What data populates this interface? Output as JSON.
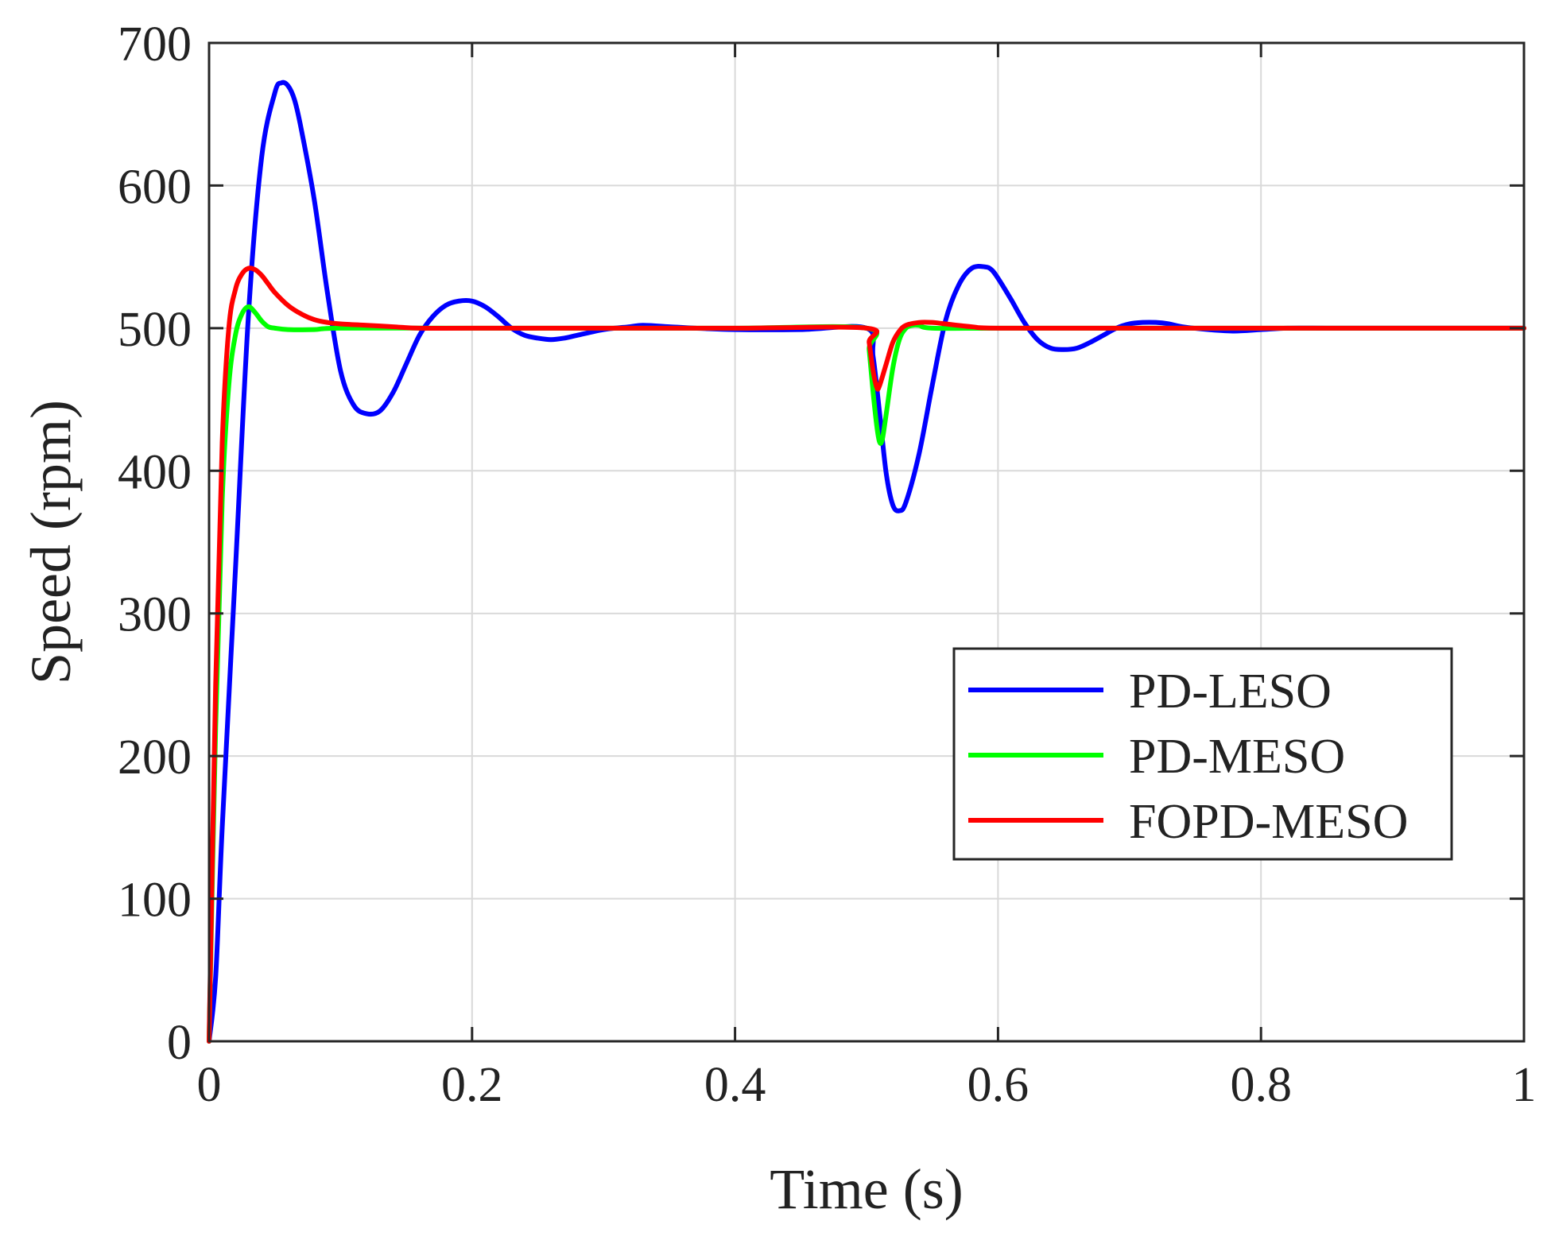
{
  "chart_data": {
    "type": "line",
    "title": "",
    "xlabel": "Time (s)",
    "ylabel": "Speed (rpm)",
    "xlim": [
      0,
      1
    ],
    "ylim": [
      0,
      700
    ],
    "grid": true,
    "legend_position": "right-middle",
    "x_ticks": [
      0,
      0.2,
      0.4,
      0.6,
      0.8,
      1
    ],
    "x_tick_labels": [
      "0",
      "0.2",
      "0.4",
      "0.6",
      "0.8",
      "1"
    ],
    "y_ticks": [
      0,
      100,
      200,
      300,
      400,
      500,
      600,
      700
    ],
    "y_tick_labels": [
      "0",
      "100",
      "200",
      "300",
      "400",
      "500",
      "600",
      "700"
    ],
    "series": [
      {
        "name": "PD-LESO",
        "color": "#0000ff",
        "x": [
          0,
          0.005,
          0.01,
          0.02,
          0.03,
          0.04,
          0.05,
          0.055,
          0.06,
          0.065,
          0.07,
          0.08,
          0.09,
          0.1,
          0.11,
          0.12,
          0.13,
          0.14,
          0.15,
          0.16,
          0.17,
          0.18,
          0.19,
          0.2,
          0.21,
          0.22,
          0.23,
          0.24,
          0.25,
          0.26,
          0.27,
          0.28,
          0.3,
          0.32,
          0.33,
          0.35,
          0.37,
          0.4,
          0.45,
          0.5,
          0.505,
          0.51,
          0.515,
          0.52,
          0.525,
          0.53,
          0.54,
          0.55,
          0.56,
          0.57,
          0.58,
          0.59,
          0.595,
          0.6,
          0.61,
          0.62,
          0.63,
          0.64,
          0.65,
          0.66,
          0.67,
          0.68,
          0.69,
          0.7,
          0.71,
          0.72,
          0.73,
          0.74,
          0.76,
          0.78,
          0.8,
          0.82,
          0.85,
          0.9,
          0.95,
          1.0
        ],
        "y": [
          0,
          45,
          150,
          330,
          510,
          620,
          665,
          672,
          670,
          660,
          640,
          590,
          525,
          470,
          446,
          440,
          442,
          455,
          475,
          495,
          508,
          516,
          519,
          519,
          515,
          508,
          500,
          495,
          493,
          492,
          493,
          495,
          499,
          501,
          502,
          501,
          500,
          499,
          499,
          500,
          480,
          440,
          398,
          376,
          372,
          378,
          412,
          460,
          505,
          530,
          542,
          543,
          541,
          535,
          520,
          504,
          492,
          486,
          485,
          486,
          490,
          495,
          500,
          503,
          504,
          504,
          503,
          501,
          499,
          498,
          499,
          500,
          500,
          500,
          500,
          500
        ]
      },
      {
        "name": "PD-MESO",
        "color": "#00ff00",
        "x": [
          0,
          0.005,
          0.01,
          0.015,
          0.02,
          0.025,
          0.03,
          0.035,
          0.04,
          0.045,
          0.05,
          0.06,
          0.08,
          0.1,
          0.2,
          0.3,
          0.4,
          0.5,
          0.502,
          0.505,
          0.508,
          0.51,
          0.512,
          0.515,
          0.52,
          0.525,
          0.53,
          0.535,
          0.54,
          0.55,
          0.6,
          0.7,
          0.8,
          0.9,
          1.0
        ],
        "y": [
          0,
          220,
          380,
          460,
          495,
          510,
          515,
          511,
          505,
          501,
          500,
          499,
          499,
          500,
          500,
          500,
          500,
          500,
          485,
          455,
          430,
          420,
          422,
          440,
          472,
          492,
          500,
          502,
          502,
          500,
          500,
          500,
          500,
          500,
          500
        ]
      },
      {
        "name": "FOPD-MESO",
        "color": "#ff0000",
        "x": [
          0,
          0.005,
          0.01,
          0.015,
          0.02,
          0.025,
          0.03,
          0.035,
          0.04,
          0.045,
          0.05,
          0.06,
          0.07,
          0.08,
          0.09,
          0.1,
          0.12,
          0.14,
          0.16,
          0.2,
          0.3,
          0.4,
          0.5,
          0.502,
          0.505,
          0.508,
          0.51,
          0.515,
          0.52,
          0.525,
          0.53,
          0.54,
          0.55,
          0.56,
          0.58,
          0.6,
          0.7,
          0.8,
          0.9,
          1.0
        ],
        "y": [
          0,
          250,
          420,
          500,
          527,
          538,
          542,
          541,
          537,
          531,
          525,
          516,
          510,
          506,
          504,
          503,
          502,
          501,
          500,
          500,
          500,
          500,
          500,
          490,
          470,
          458,
          460,
          475,
          490,
          498,
          502,
          504,
          504,
          503,
          501,
          500,
          500,
          500,
          500,
          500
        ]
      }
    ]
  }
}
